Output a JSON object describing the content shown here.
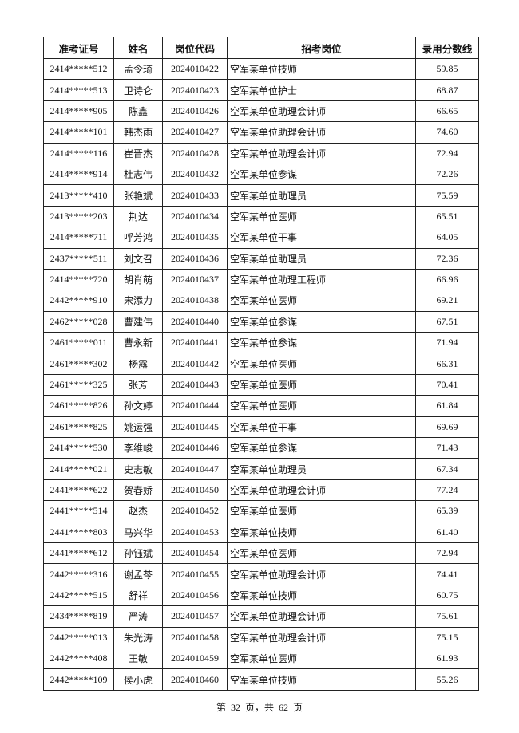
{
  "table": {
    "headers": [
      "准考证号",
      "姓名",
      "岗位代码",
      "招考岗位",
      "录用分数线"
    ],
    "rows": [
      [
        "2414*****512",
        "孟令琦",
        "2024010422",
        "空军某单位技师",
        "59.85"
      ],
      [
        "2414*****513",
        "卫诗仑",
        "2024010423",
        "空军某单位护士",
        "68.87"
      ],
      [
        "2414*****905",
        "陈鑫",
        "2024010426",
        "空军某单位助理会计师",
        "66.65"
      ],
      [
        "2414*****101",
        "韩杰雨",
        "2024010427",
        "空军某单位助理会计师",
        "74.60"
      ],
      [
        "2414*****116",
        "崔晋杰",
        "2024010428",
        "空军某单位助理会计师",
        "72.94"
      ],
      [
        "2414*****914",
        "杜志伟",
        "2024010432",
        "空军某单位参谋",
        "72.26"
      ],
      [
        "2413*****410",
        "张艳斌",
        "2024010433",
        "空军某单位助理员",
        "75.59"
      ],
      [
        "2413*****203",
        "荆达",
        "2024010434",
        "空军某单位医师",
        "65.51"
      ],
      [
        "2414*****711",
        "呼芳鸿",
        "2024010435",
        "空军某单位干事",
        "64.05"
      ],
      [
        "2437*****511",
        "刘文召",
        "2024010436",
        "空军某单位助理员",
        "72.36"
      ],
      [
        "2414*****720",
        "胡肖萌",
        "2024010437",
        "空军某单位助理工程师",
        "66.96"
      ],
      [
        "2442*****910",
        "宋添力",
        "2024010438",
        "空军某单位医师",
        "69.21"
      ],
      [
        "2462*****028",
        "曹建伟",
        "2024010440",
        "空军某单位参谋",
        "67.51"
      ],
      [
        "2461*****011",
        "曹永新",
        "2024010441",
        "空军某单位参谋",
        "71.94"
      ],
      [
        "2461*****302",
        "杨露",
        "2024010442",
        "空军某单位医师",
        "66.31"
      ],
      [
        "2461*****325",
        "张芳",
        "2024010443",
        "空军某单位医师",
        "70.41"
      ],
      [
        "2461*****826",
        "孙文婷",
        "2024010444",
        "空军某单位医师",
        "61.84"
      ],
      [
        "2461*****825",
        "姚运强",
        "2024010445",
        "空军某单位干事",
        "69.69"
      ],
      [
        "2414*****530",
        "李维峻",
        "2024010446",
        "空军某单位参谋",
        "71.43"
      ],
      [
        "2414*****021",
        "史志敏",
        "2024010447",
        "空军某单位助理员",
        "67.34"
      ],
      [
        "2441*****622",
        "贺春娇",
        "2024010450",
        "空军某单位助理会计师",
        "77.24"
      ],
      [
        "2441*****514",
        "赵杰",
        "2024010452",
        "空军某单位医师",
        "65.39"
      ],
      [
        "2441*****803",
        "马兴华",
        "2024010453",
        "空军某单位技师",
        "61.40"
      ],
      [
        "2441*****612",
        "孙钰斌",
        "2024010454",
        "空军某单位医师",
        "72.94"
      ],
      [
        "2442*****316",
        "谢孟芩",
        "2024010455",
        "空军某单位助理会计师",
        "74.41"
      ],
      [
        "2442*****515",
        "舒祥",
        "2024010456",
        "空军某单位技师",
        "60.75"
      ],
      [
        "2434*****819",
        "严涛",
        "2024010457",
        "空军某单位助理会计师",
        "75.61"
      ],
      [
        "2442*****013",
        "朱光涛",
        "2024010458",
        "空军某单位助理会计师",
        "75.15"
      ],
      [
        "2442*****408",
        "王敏",
        "2024010459",
        "空军某单位医师",
        "61.93"
      ],
      [
        "2442*****109",
        "侯小虎",
        "2024010460",
        "空军某单位技师",
        "55.26"
      ]
    ]
  },
  "footer": {
    "page_info": "第 32 页，共 62 页"
  }
}
